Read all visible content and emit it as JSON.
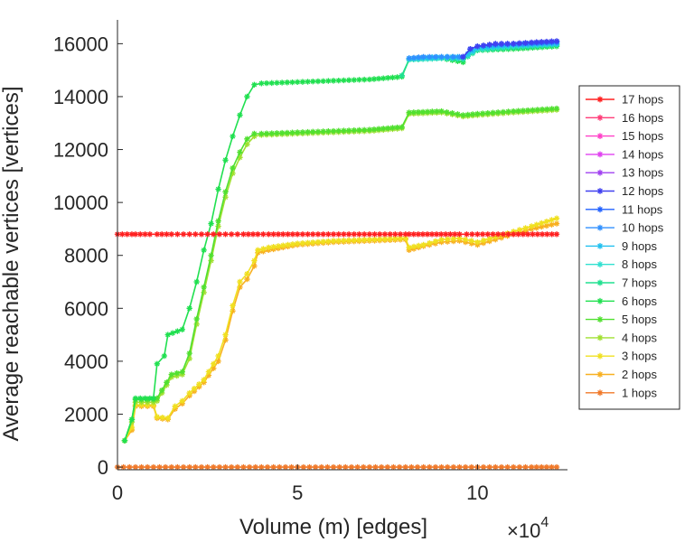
{
  "chart_data": {
    "type": "line",
    "title": "",
    "xlabel": "Volume (m) [edges]",
    "ylabel": "Average reachable vertices [vertices]",
    "x_multiplier_label": "×10",
    "x_multiplier_exp": "4",
    "xlim": [
      0,
      12.5
    ],
    "ylim": [
      -100,
      16900
    ],
    "x_ticks": [
      0,
      5,
      10
    ],
    "x_tick_labels": [
      "0",
      "5",
      "10"
    ],
    "y_ticks": [
      0,
      2000,
      4000,
      6000,
      8000,
      10000,
      12000,
      14000,
      16000
    ],
    "y_tick_labels": [
      "0",
      "2000",
      "4000",
      "6000",
      "8000",
      "10000",
      "12000",
      "14000",
      "16000"
    ],
    "grid": false,
    "legend_position": "right",
    "series": [
      {
        "name": "17 hops",
        "color": "#ff2020",
        "points": [
          [
            0,
            8800
          ],
          [
            0.4,
            8800
          ],
          [
            0.5,
            8800
          ],
          [
            0.9,
            8800
          ],
          [
            1.1,
            8800
          ],
          [
            1.5,
            8800
          ],
          [
            2.0,
            8800
          ],
          [
            2.5,
            8800
          ],
          [
            3.0,
            8800
          ],
          [
            3.5,
            8800
          ],
          [
            3.9,
            8800
          ],
          [
            4.2,
            8800
          ],
          [
            5.0,
            8800
          ],
          [
            6.0,
            8800
          ],
          [
            7.0,
            8800
          ],
          [
            8.0,
            8800
          ],
          [
            8.1,
            8800
          ],
          [
            9.5,
            8800
          ],
          [
            9.7,
            8800
          ],
          [
            10.0,
            8800
          ],
          [
            11.0,
            8800
          ],
          [
            12.2,
            8800
          ]
        ]
      },
      {
        "name": "16 hops",
        "color": "#ff3c78",
        "points": []
      },
      {
        "name": "15 hops",
        "color": "#ff40c8",
        "points": []
      },
      {
        "name": "14 hops",
        "color": "#e040f0",
        "points": []
      },
      {
        "name": "13 hops",
        "color": "#a040f0",
        "points": []
      },
      {
        "name": "12 hops",
        "color": "#4040f0",
        "points": [
          [
            9.6,
            15500
          ],
          [
            9.8,
            15800
          ],
          [
            10.0,
            15900
          ],
          [
            10.5,
            16000
          ],
          [
            11.0,
            16000
          ],
          [
            11.5,
            16050
          ],
          [
            12.2,
            16100
          ]
        ]
      },
      {
        "name": "11 hops",
        "color": "#2060ff",
        "points": [
          [
            9.6,
            15500
          ],
          [
            9.8,
            15800
          ],
          [
            10.0,
            15900
          ],
          [
            10.5,
            15980
          ],
          [
            11.0,
            16000
          ],
          [
            11.5,
            16030
          ],
          [
            12.2,
            16080
          ]
        ]
      },
      {
        "name": "10 hops",
        "color": "#3090ff",
        "points": [
          [
            8.1,
            15450
          ],
          [
            8.5,
            15500
          ],
          [
            9.0,
            15500
          ],
          [
            9.5,
            15500
          ],
          [
            9.6,
            15500
          ],
          [
            9.8,
            15800
          ],
          [
            10.0,
            15900
          ],
          [
            10.5,
            15950
          ],
          [
            11.0,
            15980
          ],
          [
            12.2,
            16050
          ]
        ]
      },
      {
        "name": "9 hops",
        "color": "#20c0f0",
        "points": [
          [
            8.1,
            15450
          ],
          [
            9.0,
            15500
          ],
          [
            9.6,
            15500
          ],
          [
            10.0,
            15850
          ],
          [
            11.0,
            15950
          ],
          [
            12.2,
            16000
          ]
        ]
      },
      {
        "name": "8 hops",
        "color": "#30e0d0",
        "points": [
          [
            8.1,
            15400
          ],
          [
            9.0,
            15450
          ],
          [
            9.6,
            15450
          ],
          [
            10.0,
            15800
          ],
          [
            11.0,
            15900
          ],
          [
            12.2,
            15980
          ]
        ]
      },
      {
        "name": "7 hops",
        "color": "#20e090",
        "points": [
          [
            7.9,
            14800
          ],
          [
            8.1,
            15400
          ],
          [
            9.0,
            15450
          ],
          [
            9.6,
            15400
          ],
          [
            10.0,
            15750
          ],
          [
            11.0,
            15850
          ],
          [
            12.2,
            15950
          ]
        ]
      },
      {
        "name": "6 hops",
        "color": "#20e050",
        "points": [
          [
            0.2,
            1000
          ],
          [
            0.4,
            1800
          ],
          [
            0.5,
            2600
          ],
          [
            0.9,
            2600
          ],
          [
            1.0,
            2600
          ],
          [
            1.1,
            3900
          ],
          [
            1.3,
            4200
          ],
          [
            1.4,
            5000
          ],
          [
            1.8,
            5200
          ],
          [
            2.0,
            6000
          ],
          [
            2.2,
            7000
          ],
          [
            2.4,
            8200
          ],
          [
            2.6,
            9200
          ],
          [
            2.8,
            10500
          ],
          [
            3.0,
            11600
          ],
          [
            3.2,
            12500
          ],
          [
            3.4,
            13300
          ],
          [
            3.6,
            14000
          ],
          [
            3.8,
            14450
          ],
          [
            4.0,
            14500
          ],
          [
            5.0,
            14550
          ],
          [
            6.0,
            14600
          ],
          [
            7.0,
            14650
          ],
          [
            7.9,
            14750
          ],
          [
            8.1,
            15400
          ],
          [
            9.0,
            15450
          ],
          [
            9.6,
            15300
          ],
          [
            9.8,
            15700
          ],
          [
            10.0,
            15750
          ],
          [
            11.0,
            15800
          ],
          [
            12.2,
            15900
          ]
        ]
      },
      {
        "name": "5 hops",
        "color": "#50e030",
        "points": [
          [
            0.2,
            1000
          ],
          [
            0.4,
            1800
          ],
          [
            0.5,
            2550
          ],
          [
            1.0,
            2550
          ],
          [
            1.1,
            2600
          ],
          [
            1.5,
            3500
          ],
          [
            1.8,
            3600
          ],
          [
            2.0,
            4300
          ],
          [
            2.2,
            5600
          ],
          [
            2.4,
            6800
          ],
          [
            2.6,
            8000
          ],
          [
            2.8,
            9300
          ],
          [
            3.0,
            10400
          ],
          [
            3.2,
            11300
          ],
          [
            3.4,
            11900
          ],
          [
            3.6,
            12400
          ],
          [
            3.8,
            12600
          ],
          [
            4.0,
            12600
          ],
          [
            5.0,
            12650
          ],
          [
            6.0,
            12700
          ],
          [
            7.0,
            12750
          ],
          [
            7.9,
            12850
          ],
          [
            8.1,
            13400
          ],
          [
            9.0,
            13450
          ],
          [
            9.6,
            13300
          ],
          [
            10.0,
            13350
          ],
          [
            11.0,
            13450
          ],
          [
            12.2,
            13550
          ]
        ]
      },
      {
        "name": "4 hops",
        "color": "#a0e030",
        "points": [
          [
            0.2,
            1000
          ],
          [
            0.4,
            1700
          ],
          [
            0.5,
            2450
          ],
          [
            1.0,
            2450
          ],
          [
            1.1,
            2500
          ],
          [
            1.5,
            3400
          ],
          [
            1.8,
            3500
          ],
          [
            2.0,
            4100
          ],
          [
            2.2,
            5400
          ],
          [
            2.4,
            6600
          ],
          [
            2.6,
            7800
          ],
          [
            2.8,
            9100
          ],
          [
            3.0,
            10200
          ],
          [
            3.2,
            11100
          ],
          [
            3.4,
            11700
          ],
          [
            3.6,
            12200
          ],
          [
            3.8,
            12500
          ],
          [
            4.0,
            12550
          ],
          [
            5.0,
            12600
          ],
          [
            6.0,
            12650
          ],
          [
            7.0,
            12700
          ],
          [
            7.9,
            12800
          ],
          [
            8.1,
            13350
          ],
          [
            9.0,
            13400
          ],
          [
            9.6,
            13250
          ],
          [
            10.0,
            13300
          ],
          [
            11.0,
            13400
          ],
          [
            12.2,
            13500
          ]
        ]
      },
      {
        "name": "3 hops",
        "color": "#f0e020",
        "points": [
          [
            0.2,
            1000
          ],
          [
            0.4,
            1500
          ],
          [
            0.5,
            2350
          ],
          [
            1.0,
            2350
          ],
          [
            1.1,
            1900
          ],
          [
            1.4,
            1850
          ],
          [
            1.6,
            2300
          ],
          [
            1.8,
            2500
          ],
          [
            2.0,
            2800
          ],
          [
            2.4,
            3300
          ],
          [
            2.8,
            4200
          ],
          [
            3.0,
            5000
          ],
          [
            3.2,
            6100
          ],
          [
            3.4,
            7000
          ],
          [
            3.6,
            7300
          ],
          [
            3.8,
            7800
          ],
          [
            3.9,
            8200
          ],
          [
            4.2,
            8300
          ],
          [
            5.0,
            8450
          ],
          [
            6.0,
            8550
          ],
          [
            7.0,
            8600
          ],
          [
            8.0,
            8650
          ],
          [
            8.1,
            8300
          ],
          [
            8.5,
            8400
          ],
          [
            9.0,
            8600
          ],
          [
            9.5,
            8650
          ],
          [
            10.0,
            8500
          ],
          [
            10.5,
            8700
          ],
          [
            11.0,
            8900
          ],
          [
            11.5,
            9100
          ],
          [
            12.2,
            9400
          ]
        ]
      },
      {
        "name": "2 hops",
        "color": "#f8b020",
        "points": [
          [
            0.2,
            1000
          ],
          [
            0.4,
            1400
          ],
          [
            0.5,
            2300
          ],
          [
            1.0,
            2300
          ],
          [
            1.1,
            1850
          ],
          [
            1.4,
            1800
          ],
          [
            1.6,
            2200
          ],
          [
            1.8,
            2400
          ],
          [
            2.0,
            2700
          ],
          [
            2.4,
            3200
          ],
          [
            2.8,
            4000
          ],
          [
            3.0,
            4800
          ],
          [
            3.2,
            5900
          ],
          [
            3.4,
            6800
          ],
          [
            3.6,
            7100
          ],
          [
            3.8,
            7600
          ],
          [
            3.9,
            8100
          ],
          [
            4.2,
            8200
          ],
          [
            5.0,
            8400
          ],
          [
            6.0,
            8500
          ],
          [
            7.0,
            8550
          ],
          [
            8.0,
            8600
          ],
          [
            8.1,
            8200
          ],
          [
            8.5,
            8350
          ],
          [
            9.0,
            8500
          ],
          [
            9.5,
            8550
          ],
          [
            10.0,
            8400
          ],
          [
            10.5,
            8600
          ],
          [
            11.0,
            8800
          ],
          [
            11.5,
            9000
          ],
          [
            12.2,
            9200
          ]
        ]
      },
      {
        "name": "1 hops",
        "color": "#f07828",
        "points": [
          [
            0,
            0
          ],
          [
            0.5,
            0
          ],
          [
            1.0,
            0
          ],
          [
            1.5,
            0
          ],
          [
            2.0,
            0
          ],
          [
            2.5,
            0
          ],
          [
            3.0,
            0
          ],
          [
            3.5,
            0
          ],
          [
            4.0,
            0
          ],
          [
            4.5,
            0
          ],
          [
            5.0,
            0
          ],
          [
            5.5,
            0
          ],
          [
            6.0,
            0
          ],
          [
            6.5,
            0
          ],
          [
            7.0,
            0
          ],
          [
            7.5,
            0
          ],
          [
            8.0,
            0
          ],
          [
            8.5,
            0
          ],
          [
            9.0,
            0
          ],
          [
            9.5,
            0
          ],
          [
            10.0,
            0
          ],
          [
            10.5,
            0
          ],
          [
            11.0,
            0
          ],
          [
            11.5,
            0
          ],
          [
            12.2,
            0
          ]
        ]
      }
    ]
  }
}
